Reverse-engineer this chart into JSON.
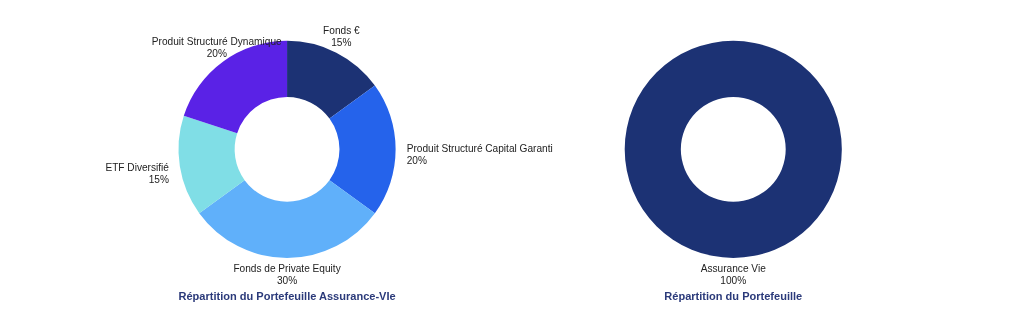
{
  "chart_data": [
    {
      "type": "donut",
      "title": "Répartition du Portefeuille Assurance-VIe",
      "categories": [
        "Fonds €",
        "Produit Structuré Capital Garanti",
        "Fonds de Private Equity",
        "ETF Diversifié",
        "Produit Structuré Dynamique"
      ],
      "values": [
        15,
        20,
        30,
        15,
        20
      ],
      "colors": [
        "#1c3274",
        "#2563eb",
        "#60b0fa",
        "#80dee6",
        "#5a22e6"
      ],
      "value_labels": [
        "15%",
        "20%",
        "30%",
        "15%",
        "20%"
      ]
    },
    {
      "type": "donut",
      "title": "Répartition du Portefeuille",
      "categories": [
        "Assurance Vie"
      ],
      "values": [
        100
      ],
      "colors": [
        "#1c3274"
      ],
      "value_labels": [
        "100%"
      ]
    }
  ]
}
